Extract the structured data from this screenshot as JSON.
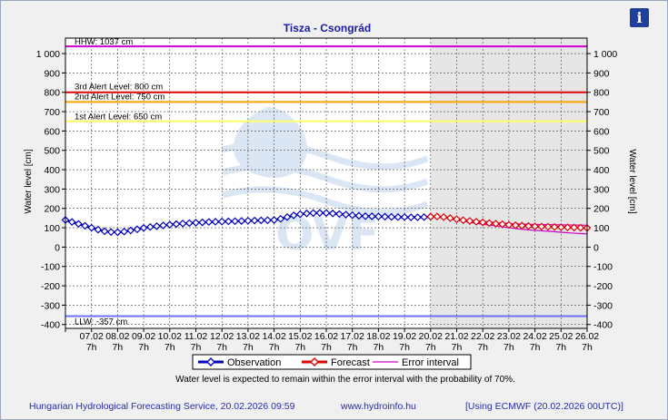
{
  "info_button": {
    "glyph": "i"
  },
  "chart_data": {
    "type": "line",
    "title": "Tisza - Csongrád",
    "ylabel": "Water level [cm]",
    "ylabel_right": "Water level [cm]",
    "ylim": [
      -420,
      1080
    ],
    "yticks": [
      -400,
      -300,
      -200,
      -100,
      0,
      100,
      200,
      300,
      400,
      500,
      600,
      700,
      800,
      900,
      1000
    ],
    "ytick_labels": [
      "-400",
      "-300",
      "-200",
      "-100",
      "0",
      "100",
      "200",
      "300",
      "400",
      "500",
      "600",
      "700",
      "800",
      "900",
      "1 000"
    ],
    "x_dates": [
      "07.02",
      "08.02",
      "09.02",
      "10.02",
      "11.02",
      "12.02",
      "13.02",
      "14.02",
      "15.02",
      "16.02",
      "17.02",
      "18.02",
      "19.02",
      "20.02",
      "21.02",
      "22.02",
      "23.02",
      "24.02",
      "25.02",
      "26.02"
    ],
    "x_time": "7h",
    "x_start_date": "06.02 7h",
    "x_end_date": "26.02 7h",
    "forecast_start": "20.02 7h",
    "grid": true,
    "levels": [
      {
        "name": "HHW",
        "label": "HHW: 1037 cm",
        "value": 1037,
        "color": "#d000d0"
      },
      {
        "name": "3rd Alert Level",
        "label": "3rd Alert Level: 800 cm",
        "value": 800,
        "color": "#e00000"
      },
      {
        "name": "2nd Alert Level",
        "label": "2nd Alert Level: 750 cm",
        "value": 750,
        "color": "#ffa500"
      },
      {
        "name": "1st Alert Level",
        "label": "1st Alert Level: 650 cm",
        "value": 650,
        "color": "#ffff66"
      },
      {
        "name": "LLW",
        "label": "LLW: -357 cm",
        "value": -357,
        "color": "#7070ff"
      }
    ],
    "series": [
      {
        "name": "Observation",
        "color": "#0000c0",
        "x_days": [
          0,
          0.25,
          0.5,
          0.75,
          1,
          1.25,
          1.5,
          1.75,
          2,
          2.25,
          2.5,
          2.75,
          3,
          3.25,
          3.5,
          3.75,
          4,
          4.25,
          4.5,
          4.75,
          5,
          5.25,
          5.5,
          5.75,
          6,
          6.25,
          6.5,
          6.75,
          7,
          7.25,
          7.5,
          7.75,
          8,
          8.25,
          8.5,
          8.75,
          9,
          9.25,
          9.5,
          9.75,
          10,
          10.25,
          10.5,
          10.75,
          11,
          11.25,
          11.5,
          11.75,
          12,
          12.25,
          12.5,
          12.75,
          13,
          13.25,
          13.5,
          13.75,
          14
        ],
        "values": [
          140,
          130,
          120,
          110,
          100,
          90,
          82,
          78,
          77,
          80,
          86,
          92,
          99,
          104,
          108,
          112,
          116,
          119,
          122,
          124,
          126,
          128,
          130,
          131,
          132,
          133,
          134,
          135,
          136,
          137,
          138,
          139,
          140,
          146,
          155,
          164,
          170,
          174,
          176,
          177,
          176,
          174,
          171,
          168,
          165,
          162,
          160,
          159,
          158,
          157,
          156,
          155,
          155,
          154,
          154,
          155,
          157
        ]
      },
      {
        "name": "Forecast",
        "color": "#e00000",
        "x_days": [
          14,
          14.25,
          14.5,
          14.75,
          15,
          15.25,
          15.5,
          15.75,
          16,
          16.25,
          16.5,
          16.75,
          17,
          17.25,
          17.5,
          17.75,
          18,
          18.25,
          18.5,
          18.75,
          19,
          19.25,
          19.5,
          19.75,
          20
        ],
        "values": [
          157,
          158,
          155,
          150,
          144,
          139,
          135,
          131,
          128,
          124,
          121,
          118,
          115,
          113,
          111,
          109,
          107,
          106,
          105,
          104,
          103,
          102,
          101,
          100,
          99
        ]
      },
      {
        "name": "Error interval",
        "color": "#d000d0",
        "x_days": [
          14,
          14.5,
          15,
          15.5,
          16,
          16.5,
          17,
          17.5,
          18,
          18.5,
          19,
          19.5,
          20
        ],
        "upper": [
          158,
          157,
          147,
          139,
          133,
          127,
          122,
          119,
          117,
          116,
          115,
          114,
          113
        ],
        "lower": [
          156,
          152,
          139,
          128,
          118,
          110,
          100,
          92,
          86,
          82,
          77,
          72,
          68
        ]
      }
    ],
    "legend": [
      "Observation",
      "Forecast",
      "Error interval"
    ],
    "legend_position": "bottom",
    "note": "Water level is expected to remain within the error interval with the probability of 70%.",
    "watermark": "OVF"
  },
  "footer": {
    "service": "Hungarian Hydrological Forecasting Service, 20.02.2026 09:59",
    "url": "www.hydroinfo.hu",
    "model": "[Using ECMWF (20.02.2026  00UTC)]"
  }
}
